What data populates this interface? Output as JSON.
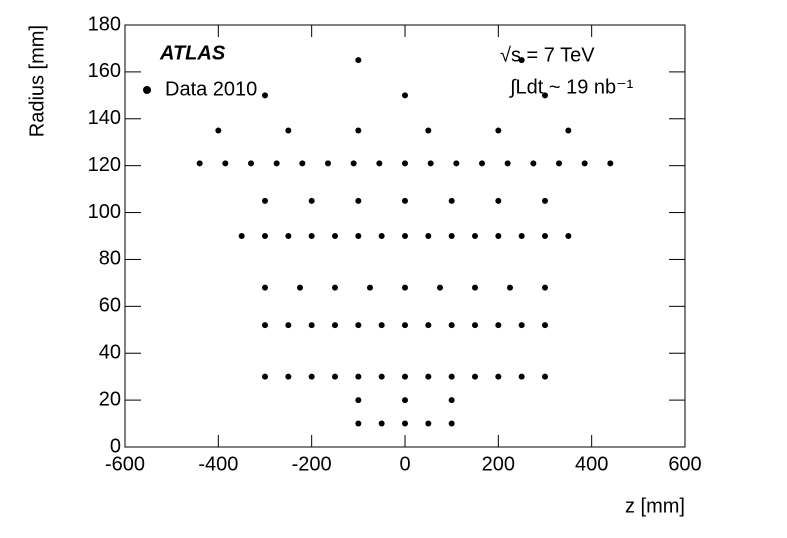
{
  "chart_data": {
    "type": "scatter",
    "title": "ATLAS",
    "annotations": [
      "√s = 7 TeV",
      "∫Ldt ~ 19 nb⁻¹"
    ],
    "x_label": "z [mm]",
    "y_label": "Radius [mm]",
    "xlim": [
      -600,
      600
    ],
    "ylim": [
      0,
      180
    ],
    "xticks": [
      -600,
      -400,
      -200,
      0,
      200,
      400,
      600
    ],
    "yticks": [
      0,
      20,
      40,
      60,
      80,
      100,
      120,
      140,
      160,
      180
    ],
    "legend": "top-left",
    "series": [
      {
        "name": "Data 2010",
        "color": "#000000",
        "x": [
          -100,
          -50,
          0,
          50,
          100,
          -100,
          0,
          100,
          -300,
          -250,
          -200,
          -150,
          -100,
          -50,
          0,
          50,
          100,
          150,
          200,
          250,
          300,
          -300,
          -250,
          -200,
          -150,
          -100,
          -50,
          0,
          50,
          100,
          150,
          200,
          250,
          300,
          -300,
          -225,
          -150,
          -75,
          0,
          75,
          150,
          225,
          300,
          -350,
          -300,
          -250,
          -200,
          -150,
          -100,
          -50,
          0,
          50,
          100,
          150,
          200,
          250,
          300,
          350,
          -300,
          -200,
          -100,
          0,
          100,
          200,
          300,
          -440,
          -385,
          -330,
          -275,
          -220,
          -165,
          -110,
          -55,
          0,
          55,
          110,
          165,
          220,
          275,
          330,
          385,
          440,
          -400,
          -250,
          -100,
          50,
          200,
          350,
          -300,
          0,
          300,
          -100,
          250
        ],
        "y": [
          10,
          10,
          10,
          10,
          10,
          20,
          20,
          20,
          30,
          30,
          30,
          30,
          30,
          30,
          30,
          30,
          30,
          30,
          30,
          30,
          30,
          52,
          52,
          52,
          52,
          52,
          52,
          52,
          52,
          52,
          52,
          52,
          52,
          52,
          68,
          68,
          68,
          68,
          68,
          68,
          68,
          68,
          68,
          90,
          90,
          90,
          90,
          90,
          90,
          90,
          90,
          90,
          90,
          90,
          90,
          90,
          90,
          90,
          105,
          105,
          105,
          105,
          105,
          105,
          105,
          121,
          121,
          121,
          121,
          121,
          121,
          121,
          121,
          121,
          121,
          121,
          121,
          121,
          121,
          121,
          121,
          121,
          135,
          135,
          135,
          135,
          135,
          135,
          150,
          150,
          150,
          165,
          165
        ]
      }
    ]
  }
}
